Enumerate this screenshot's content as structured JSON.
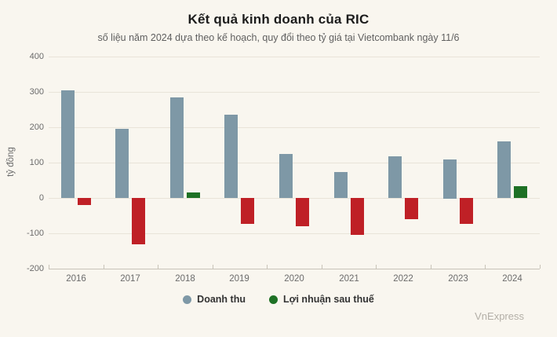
{
  "chart_data": {
    "type": "bar",
    "title": "Kết quả kinh doanh của RIC",
    "subtitle": "số liệu năm 2024 dựa theo kế hoạch, quy đổi theo tỷ giá tại Vietcombank ngày 11/6",
    "ylabel": "tỷ đồng",
    "xlabel": "",
    "categories": [
      "2016",
      "2017",
      "2018",
      "2019",
      "2020",
      "2021",
      "2022",
      "2023",
      "2024"
    ],
    "series": [
      {
        "name": "Doanh thu",
        "color": "#7e98a6",
        "values": [
          305,
          196,
          285,
          236,
          124,
          74,
          118,
          110,
          161
        ]
      },
      {
        "name": "Lợi nhuận sau thuế",
        "legend_color": "#1e7125",
        "color_positive": "#1e7125",
        "color_negative": "#bf2026",
        "values": [
          -19,
          -132,
          15,
          -73,
          -80,
          -105,
          -60,
          -73,
          33
        ]
      }
    ],
    "ylim": [
      -200,
      400
    ],
    "yticks": [
      400,
      300,
      200,
      100,
      0,
      -100,
      -200
    ],
    "grid": true,
    "legend_position": "bottom"
  },
  "watermark": "VnExpress",
  "colors": {
    "background": "#f9f6ef",
    "gridline": "#e9e4d9",
    "axis_line": "#c8c3b8",
    "revenue_bar": "#7e98a6",
    "profit_positive": "#1e7125",
    "profit_negative": "#bf2026",
    "title_text": "#1c1c1c",
    "subtitle_text": "#5f5f5f",
    "axis_text": "#6b6b6b",
    "watermark_text": "#b3afa7"
  }
}
